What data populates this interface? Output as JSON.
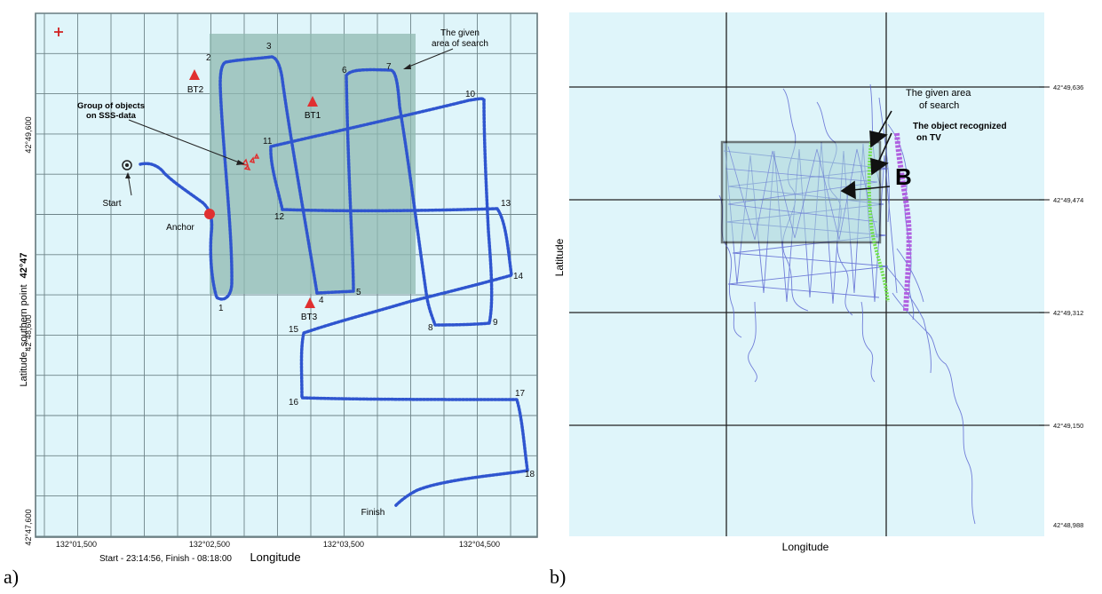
{
  "panel_a": {
    "panel_label": "a)",
    "axis_x_label": "Longitude",
    "axis_y_label": "Latitude, southern point",
    "axis_y_label_bold": "42°47",
    "x_ticks": [
      "132°01,500",
      "132°02,500",
      "132°03,500",
      "132°04,500"
    ],
    "y_ticks": [
      "42°49,600",
      "42°48,600",
      "42°47,600"
    ],
    "time_caption": "Start -  23:14:56,   Finish -  08:18:00",
    "search_area_label_line1": "The given",
    "search_area_label_line2": "area of search",
    "objects_label_line1": "Group of objects",
    "objects_label_line2": "on SSS-data",
    "start_label": "Start",
    "anchor_label": "Anchor",
    "finish_label": "Finish",
    "beacons": [
      "BT2",
      "BT1",
      "BT3"
    ],
    "waypoints": [
      "1",
      "2",
      "3",
      "4",
      "5",
      "6",
      "7",
      "8",
      "9",
      "10",
      "11",
      "12",
      "13",
      "14",
      "15",
      "16",
      "17",
      "18"
    ],
    "colors": {
      "background": "#dff5fa",
      "grid": "#5a6f73",
      "track": "#2f55cf",
      "search_area": "#8fb8b0",
      "beacon": "#e03030"
    }
  },
  "panel_b": {
    "panel_label": "b)",
    "axis_x_label": "Longitude",
    "axis_y_label": "Latitude",
    "y_ticks": [
      "42°49,636",
      "42°49,474",
      "42°49,312",
      "42°49,150",
      "42°48,988"
    ],
    "search_area_label_line1": "The given area",
    "search_area_label_line2": "of search",
    "object_label_line1": "The object recognized",
    "object_label_line2": "on TV",
    "marker_letter": "B",
    "colors": {
      "background": "#dff5fa",
      "grid": "#222222",
      "tracks": "#5560d0",
      "green_track": "#6fe04a",
      "purple_track": "#b060e0"
    }
  }
}
